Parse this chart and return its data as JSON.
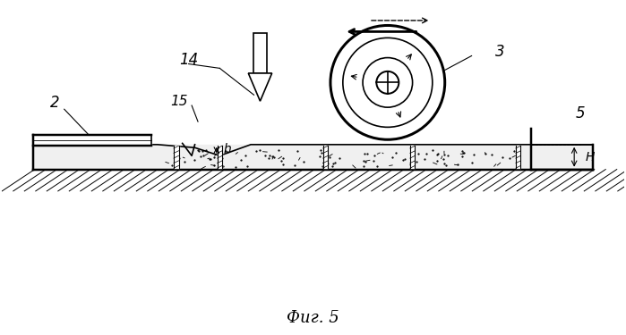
{
  "title": "Фиг. 5",
  "bg_color": "#ffffff",
  "line_color": "#000000",
  "label_2": "2",
  "label_3": "3",
  "label_5": "5",
  "label_14": "14",
  "label_15": "15",
  "label_h": "h",
  "label_H": "H",
  "figsize": [
    6.99,
    3.75
  ],
  "dpi": 100
}
